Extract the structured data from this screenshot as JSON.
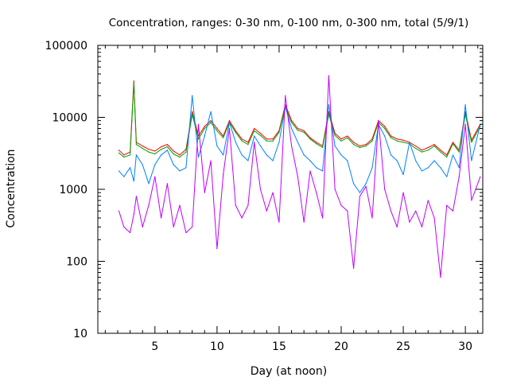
{
  "chart_data": {
    "type": "line",
    "title": "Concentration, ranges: 0-30 nm, 0-100 nm, 0-300 nm, total (5/9/1)",
    "xlabel": "Day (at noon)",
    "ylabel": "Concentration",
    "x_scale": "linear",
    "y_scale": "log",
    "xlim": [
      0.4,
      31.4
    ],
    "ylim": [
      10,
      100000
    ],
    "x_ticks": [
      5,
      10,
      15,
      20,
      25,
      30
    ],
    "x_tick_labels": [
      "5",
      "10",
      "15",
      "20",
      "25",
      "30"
    ],
    "y_ticks": [
      10,
      100,
      1000,
      10000,
      100000
    ],
    "y_tick_labels": [
      "10",
      "100",
      "1000",
      "10000",
      "100000"
    ],
    "grid": false,
    "legend": "none",
    "series": [
      {
        "color": "#ff0000",
        "x": [
          2.1,
          2.5,
          3.0,
          3.3,
          3.5,
          4.0,
          4.5,
          5.0,
          5.5,
          6.0,
          6.5,
          7.0,
          7.5,
          8.0,
          8.5,
          9.0,
          9.5,
          10.0,
          10.5,
          11.0,
          11.5,
          12.0,
          12.5,
          13.0,
          13.5,
          14.0,
          14.5,
          15.0,
          15.5,
          16.0,
          16.5,
          17.0,
          17.5,
          18.0,
          18.5,
          19.0,
          19.5,
          20.0,
          20.5,
          21.0,
          21.5,
          22.0,
          22.5,
          23.0,
          23.5,
          24.0,
          24.5,
          25.0,
          25.5,
          26.0,
          26.5,
          27.0,
          27.5,
          28.0,
          28.5,
          29.0,
          29.5,
          30.0,
          30.5,
          31.2
        ],
        "y": [
          3500,
          3000,
          3300,
          32000,
          4500,
          4000,
          3600,
          3400,
          3900,
          4200,
          3400,
          3000,
          3600,
          12000,
          5500,
          7500,
          9000,
          7000,
          5500,
          9000,
          6500,
          5000,
          4500,
          7000,
          6000,
          5000,
          5000,
          6500,
          15000,
          9000,
          7000,
          6500,
          5200,
          4500,
          4000,
          12000,
          6000,
          5000,
          5500,
          4500,
          4000,
          4200,
          5000,
          9000,
          7500,
          5500,
          5000,
          4800,
          4500,
          4000,
          3500,
          3800,
          4200,
          3500,
          3000,
          4500,
          3500,
          12000,
          4800,
          8000
        ]
      },
      {
        "color": "#00a000",
        "x": [
          2.1,
          2.5,
          3.0,
          3.3,
          3.5,
          4.0,
          4.5,
          5.0,
          5.5,
          6.0,
          6.5,
          7.0,
          7.5,
          8.0,
          8.5,
          9.0,
          9.5,
          10.0,
          10.5,
          11.0,
          11.5,
          12.0,
          12.5,
          13.0,
          13.5,
          14.0,
          14.5,
          15.0,
          15.5,
          16.0,
          16.5,
          17.0,
          17.5,
          18.0,
          18.5,
          19.0,
          19.5,
          20.0,
          20.5,
          21.0,
          21.5,
          22.0,
          22.5,
          23.0,
          23.5,
          24.0,
          24.5,
          25.0,
          25.5,
          26.0,
          26.5,
          27.0,
          27.5,
          28.0,
          28.5,
          29.0,
          29.5,
          30.0,
          30.5,
          31.2
        ],
        "y": [
          3200,
          2800,
          3000,
          30000,
          4200,
          3700,
          3300,
          3100,
          3600,
          3900,
          3100,
          2800,
          3300,
          11000,
          5000,
          7000,
          8500,
          6500,
          5200,
          8500,
          6200,
          4700,
          4200,
          6500,
          5600,
          4700,
          4700,
          6200,
          14000,
          8500,
          6600,
          6200,
          5000,
          4300,
          3800,
          11000,
          5600,
          4700,
          5200,
          4200,
          3800,
          4000,
          4700,
          8500,
          7000,
          5200,
          4700,
          4500,
          4300,
          3700,
          3300,
          3500,
          4000,
          3300,
          2800,
          4300,
          3300,
          11000,
          4500,
          7500
        ]
      },
      {
        "color": "#0080ff",
        "x": [
          2.1,
          2.5,
          3.0,
          3.3,
          3.5,
          4.0,
          4.5,
          5.0,
          5.5,
          6.0,
          6.5,
          7.0,
          7.5,
          8.0,
          8.5,
          9.0,
          9.5,
          10.0,
          10.5,
          11.0,
          11.5,
          12.0,
          12.5,
          13.0,
          13.5,
          14.0,
          14.5,
          15.0,
          15.5,
          16.0,
          16.5,
          17.0,
          17.5,
          18.0,
          18.5,
          19.0,
          19.5,
          20.0,
          20.5,
          21.0,
          21.5,
          22.0,
          22.5,
          23.0,
          23.5,
          24.0,
          24.5,
          25.0,
          25.5,
          26.0,
          26.5,
          27.0,
          27.5,
          28.0,
          28.5,
          29.0,
          29.5,
          30.0,
          30.5,
          31.2
        ],
        "y": [
          1800,
          1500,
          2000,
          1300,
          3000,
          2200,
          1200,
          2200,
          3000,
          3500,
          2200,
          1800,
          2000,
          20000,
          2800,
          5500,
          12000,
          4000,
          3000,
          8500,
          4500,
          3000,
          2500,
          5500,
          4000,
          3000,
          2500,
          4500,
          14000,
          7000,
          4500,
          3000,
          2500,
          2000,
          1800,
          15000,
          4000,
          3000,
          2500,
          1200,
          900,
          1200,
          2000,
          8000,
          5500,
          3000,
          2500,
          1600,
          4500,
          2500,
          1800,
          2000,
          2500,
          2000,
          1500,
          3000,
          2000,
          15000,
          2500,
          8000
        ]
      },
      {
        "color": "#c000ff",
        "x": [
          2.1,
          2.5,
          3.0,
          3.3,
          3.5,
          4.0,
          4.5,
          5.0,
          5.5,
          6.0,
          6.5,
          7.0,
          7.5,
          8.0,
          8.5,
          9.0,
          9.5,
          10.0,
          10.5,
          11.0,
          11.5,
          12.0,
          12.5,
          13.0,
          13.5,
          14.0,
          14.5,
          15.0,
          15.5,
          16.0,
          16.5,
          17.0,
          17.5,
          18.0,
          18.5,
          19.0,
          19.5,
          20.0,
          20.5,
          21.0,
          21.5,
          22.0,
          22.5,
          23.0,
          23.5,
          24.0,
          24.5,
          25.0,
          25.5,
          26.0,
          26.5,
          27.0,
          27.5,
          28.0,
          28.5,
          29.0,
          29.5,
          30.0,
          30.5,
          31.2
        ],
        "y": [
          500,
          300,
          250,
          450,
          800,
          300,
          600,
          1500,
          400,
          1200,
          300,
          600,
          250,
          300,
          8000,
          900,
          2500,
          150,
          1600,
          7000,
          600,
          400,
          600,
          4500,
          1000,
          500,
          900,
          350,
          20000,
          4000,
          1500,
          350,
          1800,
          900,
          400,
          38000,
          1000,
          600,
          500,
          80,
          800,
          1100,
          400,
          9000,
          1000,
          500,
          300,
          900,
          350,
          500,
          300,
          700,
          400,
          60,
          600,
          500,
          1500,
          8000,
          700,
          1500
        ]
      }
    ]
  }
}
